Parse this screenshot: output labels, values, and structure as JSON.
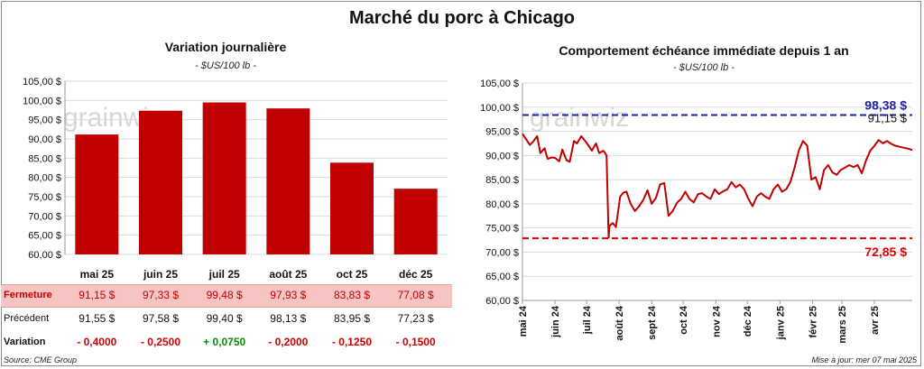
{
  "page": {
    "title": "Marché du porc à Chicago",
    "source": "Source: CME Group",
    "update": "Mise à jour: mer 07 mai 2025",
    "watermark": "grainwiz"
  },
  "colors": {
    "bar": "#c00000",
    "line": "#c00000",
    "max_line": "#1f1fa8",
    "min_line": "#e00000",
    "band": "#f7c4c4",
    "pos": "#0a8a0a",
    "neg": "#d00000"
  },
  "left": {
    "subtitle": "Variation journalière",
    "unit": "- $US/100 lb -",
    "row_labels": {
      "fermeture": "Fermeture",
      "precedent": "Précédent",
      "variation": "Variation"
    },
    "fermeture": [
      "91,15 $",
      "97,33 $",
      "99,48 $",
      "97,93 $",
      "83,83 $",
      "77,08 $"
    ],
    "precedent": [
      "91,55 $",
      "97,58 $",
      "99,40 $",
      "98,13 $",
      "83,95 $",
      "77,23 $"
    ],
    "variation": [
      "- 0,4000",
      "- 0,2500",
      "+ 0,0750",
      "- 0,2000",
      "- 0,1250",
      "- 0,1500"
    ]
  },
  "right": {
    "subtitle": "Comportement échéance immédiate depuis 1 an",
    "unit": "- $US/100 lb -",
    "max_label": "98,38 $",
    "min_label": "72,85 $",
    "last_label": "91,15 $"
  },
  "chart_data": [
    {
      "type": "bar",
      "title": "Variation journalière",
      "categories": [
        "mai 25",
        "juin 25",
        "juil 25",
        "août 25",
        "oct 25",
        "déc 25"
      ],
      "values": [
        91.15,
        97.33,
        99.48,
        97.93,
        83.83,
        77.08
      ],
      "ylim": [
        60,
        105
      ],
      "yticks": [
        60,
        65,
        70,
        75,
        80,
        85,
        90,
        95,
        100,
        105
      ],
      "ytick_labels": [
        "60,00 $",
        "65,00 $",
        "70,00 $",
        "75,00 $",
        "80,00 $",
        "85,00 $",
        "90,00 $",
        "95,00 $",
        "100,00 $",
        "105,00 $"
      ],
      "grid": true
    },
    {
      "type": "line",
      "title": "Comportement échéance immédiate depuis 1 an",
      "ylim": [
        60,
        105
      ],
      "yticks": [
        60,
        65,
        70,
        75,
        80,
        85,
        90,
        95,
        100,
        105
      ],
      "ytick_labels": [
        "60,00 $",
        "65,00 $",
        "70,00 $",
        "75,00 $",
        "80,00 $",
        "85,00 $",
        "90,00 $",
        "95,00 $",
        "100,00 $",
        "105,00 $"
      ],
      "xtick_labels": [
        "mai 24",
        "juin 24",
        "juil 24",
        "août 24",
        "sept 24",
        "oct 24",
        "nov 24",
        "déc 24",
        "janv 25",
        "févr 25",
        "mars 25",
        "avr 25"
      ],
      "xtick_dates": [
        "2024-05-01",
        "2024-06-01",
        "2024-07-01",
        "2024-08-01",
        "2024-09-01",
        "2024-10-01",
        "2024-11-01",
        "2024-12-01",
        "2025-01-01",
        "2025-02-01",
        "2025-03-01",
        "2025-04-01"
      ],
      "x_range": [
        "2024-05-01",
        "2025-05-07"
      ],
      "reference_lines": [
        {
          "name": "max",
          "value": 98.38,
          "color": "#1f1fa8",
          "style": "dashed"
        },
        {
          "name": "min",
          "value": 72.85,
          "color": "#e00000",
          "style": "dashed"
        }
      ],
      "series": [
        {
          "x": [
            "2024-05-01",
            "2024-05-04",
            "2024-05-08",
            "2024-05-11",
            "2024-05-15",
            "2024-05-18",
            "2024-05-22",
            "2024-05-25",
            "2024-05-29",
            "2024-06-01",
            "2024-06-05",
            "2024-06-08",
            "2024-06-12",
            "2024-06-15",
            "2024-06-19",
            "2024-06-22",
            "2024-06-26",
            "2024-06-29",
            "2024-07-03",
            "2024-07-06",
            "2024-07-10",
            "2024-07-13",
            "2024-07-17",
            "2024-07-20",
            "2024-07-22",
            "2024-07-23",
            "2024-07-26",
            "2024-07-29",
            "2024-08-02",
            "2024-08-05",
            "2024-08-08",
            "2024-08-12",
            "2024-08-16",
            "2024-08-20",
            "2024-08-24",
            "2024-08-28",
            "2024-09-01",
            "2024-09-05",
            "2024-09-09",
            "2024-09-13",
            "2024-09-17",
            "2024-09-21",
            "2024-09-25",
            "2024-09-29",
            "2024-10-03",
            "2024-10-07",
            "2024-10-11",
            "2024-10-15",
            "2024-10-19",
            "2024-10-23",
            "2024-10-27",
            "2024-10-31",
            "2024-11-04",
            "2024-11-08",
            "2024-11-12",
            "2024-11-16",
            "2024-11-20",
            "2024-11-24",
            "2024-11-28",
            "2024-12-02",
            "2024-12-06",
            "2024-12-10",
            "2024-12-14",
            "2024-12-18",
            "2024-12-22",
            "2024-12-26",
            "2024-12-30",
            "2025-01-03",
            "2025-01-07",
            "2025-01-11",
            "2025-01-15",
            "2025-01-19",
            "2025-01-23",
            "2025-01-27",
            "2025-01-31",
            "2025-02-04",
            "2025-02-08",
            "2025-02-12",
            "2025-02-16",
            "2025-02-20",
            "2025-02-24",
            "2025-02-28",
            "2025-03-04",
            "2025-03-08",
            "2025-03-12",
            "2025-03-16",
            "2025-03-20",
            "2025-03-24",
            "2025-03-28",
            "2025-04-01",
            "2025-04-05",
            "2025-04-09",
            "2025-04-13",
            "2025-04-17",
            "2025-04-21",
            "2025-04-25",
            "2025-04-29",
            "2025-05-03",
            "2025-05-07"
          ],
          "y": [
            94.5,
            93.5,
            92.2,
            92.8,
            94.0,
            90.5,
            91.5,
            89.3,
            89.6,
            89.5,
            88.8,
            91.2,
            89.0,
            88.7,
            93.0,
            92.5,
            94.0,
            93.2,
            92.0,
            91.0,
            92.5,
            90.5,
            91.0,
            90.0,
            73.0,
            75.5,
            76.0,
            75.2,
            81.5,
            82.3,
            82.5,
            80.0,
            78.5,
            79.5,
            80.8,
            82.8,
            80.0,
            81.2,
            84.0,
            84.3,
            77.5,
            78.5,
            80.2,
            81.0,
            82.5,
            81.0,
            80.3,
            82.0,
            82.2,
            81.5,
            81.0,
            83.0,
            82.0,
            82.6,
            83.0,
            84.5,
            83.4,
            84.0,
            83.0,
            81.0,
            79.5,
            81.5,
            82.2,
            81.5,
            81.0,
            83.0,
            84.0,
            82.5,
            83.0,
            84.5,
            87.5,
            91.0,
            93.0,
            92.0,
            85.0,
            85.5,
            83.0,
            87.0,
            88.0,
            86.5,
            86.0,
            87.0,
            87.5,
            88.0,
            87.6,
            88.0,
            86.3,
            89.0,
            91.0,
            92.0,
            93.2,
            92.5,
            93.0,
            92.4,
            92.0,
            91.8,
            91.6,
            91.4,
            91.15
          ]
        }
      ],
      "grid": true
    }
  ]
}
